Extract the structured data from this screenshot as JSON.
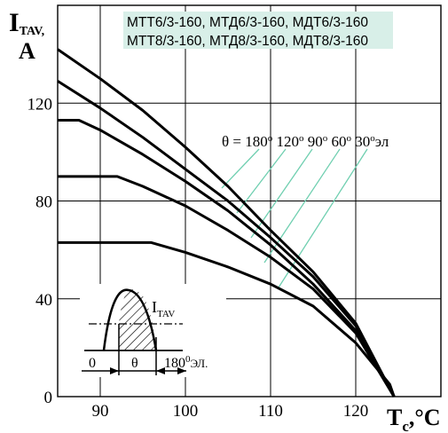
{
  "chart_data": {
    "type": "line",
    "legend_box": {
      "lines": [
        "МТТ6/3-160, МТД6/3-160, МДТ6/3-160",
        "МТТ8/3-160, МТД8/3-160, МДТ8/3-160"
      ],
      "background": "#d8efe8"
    },
    "ylabel_main": "I",
    "ylabel_sub": "TAV,",
    "ylabel_unit": "A",
    "xlabel_main": "T",
    "xlabel_sub": "c",
    "xlabel_unit": ",°C",
    "xlim": [
      85,
      130
    ],
    "ylim": [
      0,
      160
    ],
    "xticks": [
      90,
      100,
      110,
      120
    ],
    "yticks": [
      0,
      40,
      80,
      120
    ],
    "grid": true,
    "theta_label": {
      "prefix": "θ = ",
      "values": [
        "180",
        "120",
        "90",
        "60",
        "30"
      ],
      "degree": "о",
      "suffix": "эл"
    },
    "hatch_color": "#6fcfb0",
    "series": [
      {
        "angle": "30",
        "points": [
          [
            85,
            63
          ],
          [
            96,
            63
          ],
          [
            100,
            59
          ],
          [
            105,
            53
          ],
          [
            110,
            46
          ],
          [
            115,
            37
          ],
          [
            120,
            22
          ],
          [
            124,
            5
          ],
          [
            124.5,
            0
          ]
        ]
      },
      {
        "angle": "60",
        "points": [
          [
            85,
            90
          ],
          [
            92,
            90
          ],
          [
            95,
            86
          ],
          [
            100,
            78
          ],
          [
            105,
            68
          ],
          [
            110,
            57
          ],
          [
            115,
            44
          ],
          [
            120,
            26
          ],
          [
            124.5,
            0
          ]
        ]
      },
      {
        "angle": "90",
        "points": [
          [
            85,
            113
          ],
          [
            87.5,
            113
          ],
          [
            90,
            109
          ],
          [
            95,
            99
          ],
          [
            100,
            88
          ],
          [
            105,
            76
          ],
          [
            110,
            62
          ],
          [
            115,
            46
          ],
          [
            120,
            27
          ],
          [
            124.5,
            0
          ]
        ]
      },
      {
        "angle": "120",
        "points": [
          [
            85,
            129
          ],
          [
            90,
            118
          ],
          [
            95,
            106
          ],
          [
            100,
            93
          ],
          [
            105,
            80
          ],
          [
            110,
            65
          ],
          [
            115,
            49
          ],
          [
            120,
            29
          ],
          [
            124.5,
            0
          ]
        ]
      },
      {
        "angle": "180",
        "points": [
          [
            85,
            142
          ],
          [
            90,
            130
          ],
          [
            95,
            117
          ],
          [
            100,
            102
          ],
          [
            105,
            86
          ],
          [
            110,
            68
          ],
          [
            115,
            51
          ],
          [
            120,
            30
          ],
          [
            124.5,
            0
          ]
        ]
      }
    ],
    "inset": {
      "i_label_main": "I",
      "i_label_sub": "TAV",
      "zero": "0",
      "theta": "θ",
      "angle": "180",
      "degree": "0",
      "unit": "ЭЛ."
    }
  }
}
